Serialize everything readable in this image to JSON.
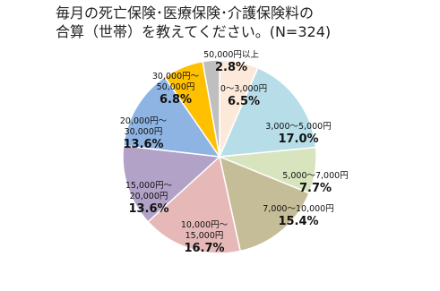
{
  "chart_data": {
    "type": "pie",
    "title": "毎月の死亡保険･医療保険･介護保険料の\n合算（世帯）を教えてください。(N=324)",
    "categories": [
      "0～3,000円",
      "3,000～5,000円",
      "5,000～7,000円",
      "7,000～10,000円",
      "10,000円～\n15,000円",
      "15,000円～\n20,000円",
      "20,000円～\n30,000円",
      "30,000円～\n50,000円",
      "50,000円以上"
    ],
    "values": [
      6.5,
      17.0,
      7.7,
      15.4,
      16.7,
      13.6,
      13.6,
      6.8,
      2.8
    ],
    "value_labels": [
      "6.5%",
      "17.0%",
      "7.7%",
      "15.4%",
      "16.7%",
      "13.6%",
      "13.6%",
      "6.8%",
      "2.8%"
    ],
    "colors": [
      "#FDE9D9",
      "#B7DEE8",
      "#D7E4BD",
      "#C4BD97",
      "#E6B9B8",
      "#B3A2C7",
      "#8EB4E3",
      "#FFC000",
      "#BFBFBF"
    ]
  }
}
